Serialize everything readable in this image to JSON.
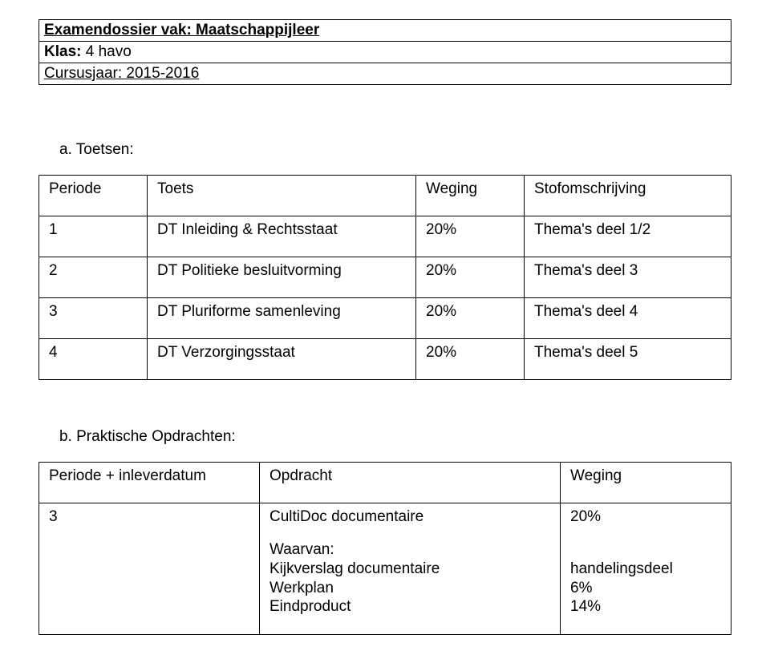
{
  "header": {
    "title": "Examendossier vak: Maatschappijleer",
    "klas_label": "Klas:",
    "klas_value": "  4 havo",
    "cursusjaar": "Cursusjaar: 2015-2016"
  },
  "section_a_label": "a.  Toetsen:",
  "section_b_label": "b.  Praktische Opdrachten:",
  "table_a": {
    "headers": {
      "periode": "Periode",
      "toets": "Toets",
      "weging": "Weging",
      "stof": "Stofomschrijving"
    },
    "rows": [
      {
        "periode": "1",
        "toets": "DT Inleiding & Rechtsstaat",
        "weging": "20%",
        "stof": "Thema's deel 1/2"
      },
      {
        "periode": "2",
        "toets": "DT Politieke besluitvorming",
        "weging": "20%",
        "stof": "Thema's deel 3"
      },
      {
        "periode": "3",
        "toets": "DT Pluriforme samenleving",
        "weging": "20%",
        "stof": "Thema's deel 4"
      },
      {
        "periode": "4",
        "toets": "DT Verzorgingsstaat",
        "weging": "20%",
        "stof": "Thema's deel 5"
      }
    ]
  },
  "table_b": {
    "headers": {
      "periode": "Periode + inleverdatum",
      "opdracht": "Opdracht",
      "weging": "Weging"
    },
    "row": {
      "periode": "3",
      "opdracht_main": "CultiDoc documentaire",
      "opdracht_sub_heading": "Waarvan:",
      "opdracht_sub_items": [
        "Kijkverslag documentaire",
        "Werkplan",
        "Eindproduct"
      ],
      "weging_main": "20%",
      "weging_sub_items": [
        "handelingsdeel",
        "6%",
        "14%"
      ]
    }
  },
  "style": {
    "background_color": "#ffffff",
    "text_color": "#000000",
    "border_color": "#000000",
    "font_family": "Arial",
    "base_font_size_pt": 14
  }
}
